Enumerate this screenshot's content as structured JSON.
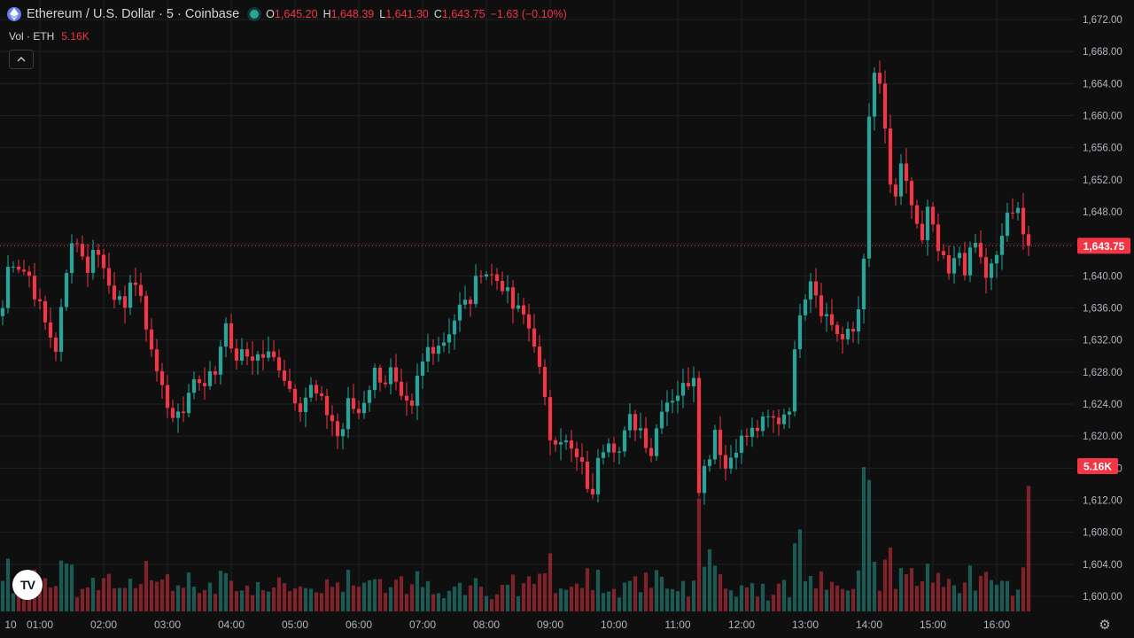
{
  "legend": {
    "symbol_title": "Ethereum / U.S. Dollar · 5 · Coinbase",
    "o_label": "O",
    "o_value": "1,645.20",
    "h_label": "H",
    "h_value": "1,648.39",
    "l_label": "L",
    "l_value": "1,641.30",
    "c_label": "C",
    "c_value": "1,643.75",
    "change": "−1.63 (−0.10%)"
  },
  "volume_legend": {
    "label": "Vol · ETH",
    "value": "5.16K"
  },
  "icons": {
    "symbol": "ethereum-icon",
    "status": "market-status-dot-icon",
    "collapse": "chevron-up-icon",
    "logo": "tradingview-logo-icon",
    "settings": "gear-icon"
  },
  "logo_text": "TV",
  "colors": {
    "up": "#26a69a",
    "down": "#f23645",
    "background": "#0f0f0f",
    "grid": "#1e2026",
    "axis_text": "#b2b5be"
  },
  "chart_data": {
    "type": "candlestick",
    "price_axis": {
      "ticks": [
        "1,600.00",
        "1,604.00",
        "1,608.00",
        "1,612.00",
        "1,616.00",
        "1,620.00",
        "1,624.00",
        "1,628.00",
        "1,632.00",
        "1,636.00",
        "1,640.00",
        "1,644.00",
        "1,648.00",
        "1,652.00",
        "1,656.00",
        "1,660.00",
        "1,664.00",
        "1,668.00",
        "1,672.00"
      ],
      "tick_values": [
        1600,
        1604,
        1608,
        1612,
        1616,
        1620,
        1624,
        1628,
        1632,
        1636,
        1640,
        1644,
        1648,
        1652,
        1656,
        1660,
        1664,
        1668,
        1672
      ],
      "range": [
        1598.8,
        1673.5
      ]
    },
    "time_axis": {
      "ticks": [
        "10",
        "01:00",
        "02:00",
        "03:00",
        "04:00",
        "05:00",
        "06:00",
        "07:00",
        "08:00",
        "09:00",
        "10:00",
        "11:00",
        "12:00",
        "13:00",
        "14:00",
        "15:00",
        "16:00"
      ],
      "tick_index": [
        -5,
        7,
        19,
        31,
        43,
        55,
        67,
        79,
        91,
        103,
        115,
        127,
        139,
        151,
        163,
        175,
        187
      ]
    },
    "last_price": {
      "value": 1643.75,
      "label": "1,643.75"
    },
    "last_volume": {
      "value": 5160,
      "label": "5.16K"
    },
    "volume_range": [
      0,
      10500
    ],
    "close_anchors": [
      [
        0,
        1636
      ],
      [
        1,
        1641
      ],
      [
        2,
        1642
      ],
      [
        5,
        1640
      ],
      [
        8,
        1634
      ],
      [
        10,
        1631
      ],
      [
        12,
        1640
      ],
      [
        13,
        1645
      ],
      [
        15,
        1643
      ],
      [
        16,
        1640
      ],
      [
        17,
        1644
      ],
      [
        19,
        1641
      ],
      [
        21,
        1638
      ],
      [
        23,
        1635
      ],
      [
        24,
        1640
      ],
      [
        25,
        1639
      ],
      [
        27,
        1634
      ],
      [
        28,
        1631
      ],
      [
        29,
        1628
      ],
      [
        31,
        1624
      ],
      [
        33,
        1622
      ],
      [
        34,
        1623
      ],
      [
        35,
        1626
      ],
      [
        36,
        1627
      ],
      [
        38,
        1627
      ],
      [
        40,
        1628
      ],
      [
        42,
        1635
      ],
      [
        43,
        1630
      ],
      [
        46,
        1630
      ],
      [
        48,
        1630
      ],
      [
        50,
        1630
      ],
      [
        52,
        1629
      ],
      [
        54,
        1626
      ],
      [
        56,
        1624
      ],
      [
        58,
        1626
      ],
      [
        60,
        1624
      ],
      [
        62,
        1622
      ],
      [
        63,
        1620
      ],
      [
        64,
        1621
      ],
      [
        65,
        1624
      ],
      [
        67,
        1623
      ],
      [
        70,
        1628
      ],
      [
        72,
        1627
      ],
      [
        73,
        1628
      ],
      [
        75,
        1624
      ],
      [
        77,
        1623
      ],
      [
        78,
        1627
      ],
      [
        80,
        1631
      ],
      [
        83,
        1632
      ],
      [
        86,
        1636
      ],
      [
        88,
        1637
      ],
      [
        90,
        1641
      ],
      [
        92,
        1640
      ],
      [
        94,
        1639
      ],
      [
        96,
        1636
      ],
      [
        98,
        1635
      ],
      [
        100,
        1632
      ],
      [
        101,
        1628
      ],
      [
        103,
        1620
      ],
      [
        105,
        1620
      ],
      [
        107,
        1618
      ],
      [
        109,
        1616
      ],
      [
        110,
        1614
      ],
      [
        111,
        1612
      ],
      [
        112,
        1618
      ],
      [
        114,
        1620
      ],
      [
        116,
        1618
      ],
      [
        118,
        1622
      ],
      [
        120,
        1621
      ],
      [
        122,
        1618
      ],
      [
        124,
        1624
      ],
      [
        126,
        1625
      ],
      [
        128,
        1626
      ],
      [
        130,
        1628
      ],
      [
        131,
        1614
      ],
      [
        133,
        1618
      ],
      [
        134,
        1621
      ],
      [
        136,
        1616
      ],
      [
        138,
        1619
      ],
      [
        140,
        1620
      ],
      [
        142,
        1621
      ],
      [
        144,
        1622
      ],
      [
        146,
        1622
      ],
      [
        148,
        1624
      ],
      [
        150,
        1636
      ],
      [
        152,
        1640
      ],
      [
        154,
        1636
      ],
      [
        156,
        1634
      ],
      [
        158,
        1632
      ],
      [
        160,
        1633
      ],
      [
        161,
        1636
      ],
      [
        162,
        1643
      ],
      [
        163,
        1659
      ],
      [
        164,
        1665
      ],
      [
        165,
        1664
      ],
      [
        167,
        1651
      ],
      [
        168,
        1650
      ],
      [
        169,
        1653
      ],
      [
        171,
        1649
      ],
      [
        173,
        1644
      ],
      [
        174,
        1648
      ],
      [
        176,
        1643
      ],
      [
        178,
        1640
      ],
      [
        180,
        1643
      ],
      [
        181,
        1641
      ],
      [
        183,
        1644
      ],
      [
        185,
        1640
      ],
      [
        187,
        1642
      ],
      [
        189,
        1648
      ],
      [
        190,
        1647
      ],
      [
        191,
        1648
      ],
      [
        192,
        1652
      ],
      [
        193,
        1644
      ]
    ]
  }
}
